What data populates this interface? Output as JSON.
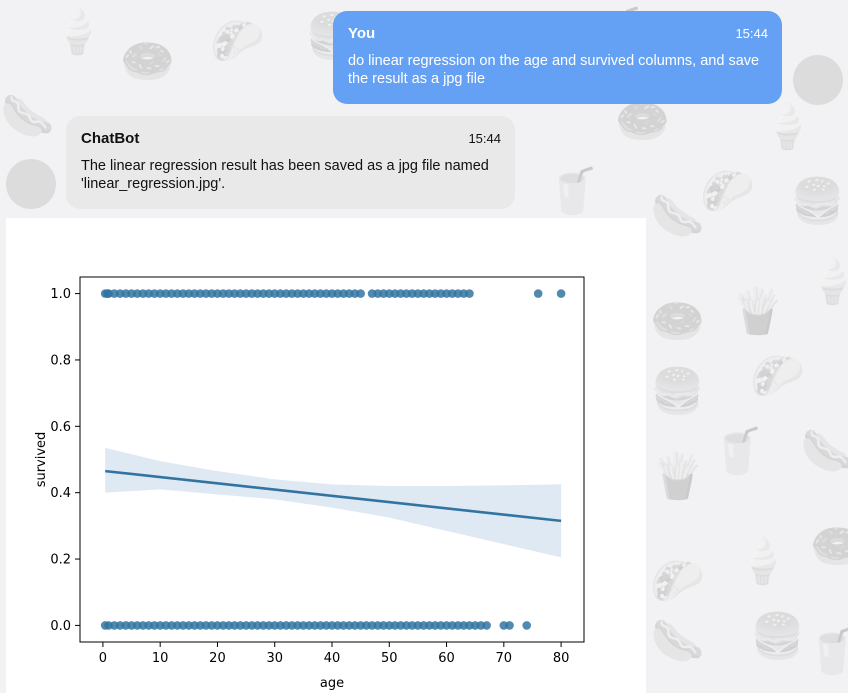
{
  "background_icons": [
    "ice-cream-icon",
    "donut-icon",
    "taco-icon",
    "burger-icon",
    "hotdog-icon",
    "soda-cup-icon",
    "fries-icon"
  ],
  "chat": {
    "messages": [
      {
        "sender": "You",
        "time": "15:44",
        "text": "do linear regression on the age and survived columns, and save the result as a jpg file"
      },
      {
        "sender": "ChatBot",
        "time": "15:44",
        "text": "The linear regression result has been saved as a jpg file named 'linear_regression.jpg'."
      }
    ]
  },
  "colors": {
    "user_bubble": "#64a1f4",
    "bot_bubble": "#e9e9e9",
    "points": "#3274a1",
    "ci_band": "#d6e4f0"
  },
  "chart_data": {
    "type": "scatter",
    "title": "",
    "xlabel": "age",
    "ylabel": "survived",
    "xlim": [
      -4,
      84
    ],
    "ylim": [
      -0.05,
      1.05
    ],
    "xticks": [
      "0",
      "10",
      "20",
      "30",
      "40",
      "50",
      "60",
      "70",
      "80"
    ],
    "yticks": [
      "0.0",
      "0.2",
      "0.4",
      "0.6",
      "0.8",
      "1.0"
    ],
    "grid": false,
    "series": [
      {
        "type": "scatter",
        "x": [
          0.4,
          0.8,
          1,
          2,
          3,
          4,
          5,
          6,
          7,
          8,
          9,
          10,
          11,
          12,
          13,
          14,
          15,
          16,
          17,
          18,
          19,
          20,
          21,
          22,
          23,
          24,
          25,
          26,
          27,
          28,
          29,
          30,
          31,
          32,
          33,
          34,
          35,
          36,
          37,
          38,
          39,
          40,
          41,
          42,
          43,
          44,
          45,
          47,
          48,
          49,
          50,
          51,
          52,
          53,
          54,
          55,
          56,
          57,
          58,
          59,
          60,
          61,
          62,
          63,
          64,
          76,
          80
        ],
        "y": [
          1,
          1,
          1,
          1,
          1,
          1,
          1,
          1,
          1,
          1,
          1,
          1,
          1,
          1,
          1,
          1,
          1,
          1,
          1,
          1,
          1,
          1,
          1,
          1,
          1,
          1,
          1,
          1,
          1,
          1,
          1,
          1,
          1,
          1,
          1,
          1,
          1,
          1,
          1,
          1,
          1,
          1,
          1,
          1,
          1,
          1,
          1,
          1,
          1,
          1,
          1,
          1,
          1,
          1,
          1,
          1,
          1,
          1,
          1,
          1,
          1,
          1,
          1,
          1,
          1,
          1,
          1
        ]
      },
      {
        "type": "scatter",
        "x": [
          0.4,
          1,
          2,
          3,
          4,
          5,
          6,
          7,
          8,
          9,
          10,
          11,
          12,
          13,
          14,
          15,
          16,
          17,
          18,
          19,
          20,
          21,
          22,
          23,
          24,
          25,
          26,
          27,
          28,
          29,
          30,
          31,
          32,
          33,
          34,
          35,
          36,
          37,
          38,
          39,
          40,
          41,
          42,
          43,
          44,
          45,
          46,
          47,
          48,
          49,
          50,
          51,
          52,
          53,
          54,
          55,
          56,
          57,
          58,
          59,
          60,
          61,
          62,
          63,
          64,
          65,
          66,
          67,
          70,
          71,
          74
        ],
        "y": [
          0,
          0,
          0,
          0,
          0,
          0,
          0,
          0,
          0,
          0,
          0,
          0,
          0,
          0,
          0,
          0,
          0,
          0,
          0,
          0,
          0,
          0,
          0,
          0,
          0,
          0,
          0,
          0,
          0,
          0,
          0,
          0,
          0,
          0,
          0,
          0,
          0,
          0,
          0,
          0,
          0,
          0,
          0,
          0,
          0,
          0,
          0,
          0,
          0,
          0,
          0,
          0,
          0,
          0,
          0,
          0,
          0,
          0,
          0,
          0,
          0,
          0,
          0,
          0,
          0,
          0,
          0,
          0,
          0,
          0,
          0
        ]
      },
      {
        "type": "line",
        "x": [
          0.4,
          80
        ],
        "y": [
          0.465,
          0.315
        ]
      },
      {
        "type": "area",
        "x": [
          0.4,
          10,
          20,
          30,
          40,
          50,
          60,
          70,
          80
        ],
        "upper": [
          0.535,
          0.495,
          0.465,
          0.44,
          0.425,
          0.42,
          0.42,
          0.422,
          0.425
        ],
        "lower": [
          0.4,
          0.41,
          0.395,
          0.38,
          0.355,
          0.325,
          0.285,
          0.245,
          0.205
        ]
      }
    ]
  }
}
